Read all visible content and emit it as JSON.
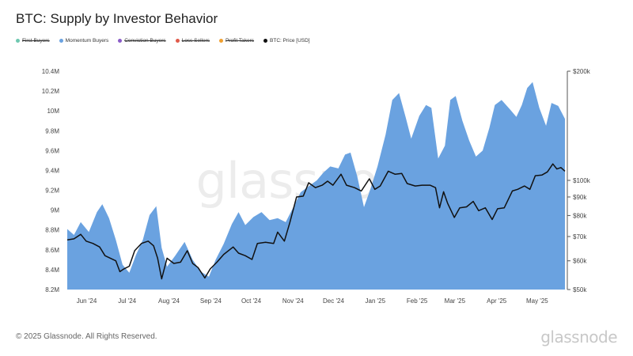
{
  "title": "BTC: Supply by Investor Behavior",
  "legend": [
    {
      "label": "First Buyers",
      "color": "#6ec8b0",
      "struck": true
    },
    {
      "label": "Momentum Buyers",
      "color": "#6aa2e0",
      "struck": false
    },
    {
      "label": "Conviction Buyers",
      "color": "#8a5cc8",
      "struck": true
    },
    {
      "label": "Loss Sellers",
      "color": "#e05a4a",
      "struck": true
    },
    {
      "label": "Profit Takers",
      "color": "#f0a030",
      "struck": true
    },
    {
      "label": "BTC: Price [USD]",
      "color": "#111111",
      "struck": false
    }
  ],
  "chart_data": {
    "type": "area",
    "x_labels": [
      "Jun '24",
      "Jul '24",
      "Aug '24",
      "Sep '24",
      "Oct '24",
      "Nov '24",
      "Dec '24",
      "Jan '25",
      "Feb '25",
      "Mar '25",
      "Apr '25",
      "May '25"
    ],
    "x_range": [
      "2024-05-27",
      "2025-05-31"
    ],
    "y_left": {
      "ticks": [
        "8.2M",
        "8.4M",
        "8.6M",
        "8.8M",
        "9M",
        "9.2M",
        "9.4M",
        "9.6M",
        "9.8M",
        "10M",
        "10.2M",
        "10.4M"
      ],
      "min": 8200000,
      "max": 10400000
    },
    "y_right": {
      "scale": "log",
      "ticks": [
        "$50k",
        "$60k",
        "$70k",
        "$80k",
        "$90k",
        "$100k",
        "$200k"
      ],
      "min": 50000,
      "max": 200000
    },
    "series": [
      {
        "name": "Momentum Buyers",
        "axis": "left",
        "color": "#6aa2e0",
        "points": [
          [
            "2024-05-27",
            8810000
          ],
          [
            "2024-06-01",
            8750000
          ],
          [
            "2024-06-06",
            8880000
          ],
          [
            "2024-06-12",
            8780000
          ],
          [
            "2024-06-18",
            8980000
          ],
          [
            "2024-06-22",
            9060000
          ],
          [
            "2024-06-27",
            8920000
          ],
          [
            "2024-07-02",
            8700000
          ],
          [
            "2024-07-07",
            8450000
          ],
          [
            "2024-07-12",
            8370000
          ],
          [
            "2024-07-17",
            8550000
          ],
          [
            "2024-07-22",
            8700000
          ],
          [
            "2024-07-27",
            8950000
          ],
          [
            "2024-08-01",
            9040000
          ],
          [
            "2024-08-05",
            8620000
          ],
          [
            "2024-08-09",
            8430000
          ],
          [
            "2024-08-15",
            8540000
          ],
          [
            "2024-08-22",
            8680000
          ],
          [
            "2024-08-28",
            8500000
          ],
          [
            "2024-09-03",
            8380000
          ],
          [
            "2024-09-09",
            8330000
          ],
          [
            "2024-09-14",
            8500000
          ],
          [
            "2024-09-20",
            8660000
          ],
          [
            "2024-09-26",
            8860000
          ],
          [
            "2024-10-01",
            8980000
          ],
          [
            "2024-10-06",
            8850000
          ],
          [
            "2024-10-12",
            8930000
          ],
          [
            "2024-10-18",
            8980000
          ],
          [
            "2024-10-24",
            8900000
          ],
          [
            "2024-10-30",
            8920000
          ],
          [
            "2024-11-05",
            8880000
          ],
          [
            "2024-11-11",
            9040000
          ],
          [
            "2024-11-16",
            9180000
          ],
          [
            "2024-11-22",
            9240000
          ],
          [
            "2024-11-28",
            9300000
          ],
          [
            "2024-12-03",
            9380000
          ],
          [
            "2024-12-08",
            9440000
          ],
          [
            "2024-12-14",
            9420000
          ],
          [
            "2024-12-19",
            9560000
          ],
          [
            "2024-12-23",
            9580000
          ],
          [
            "2024-12-28",
            9340000
          ],
          [
            "2025-01-02",
            9030000
          ],
          [
            "2025-01-07",
            9220000
          ],
          [
            "2025-01-12",
            9440000
          ],
          [
            "2025-01-18",
            9760000
          ],
          [
            "2025-01-23",
            10110000
          ],
          [
            "2025-01-28",
            10180000
          ],
          [
            "2025-02-02",
            9930000
          ],
          [
            "2025-02-06",
            9720000
          ],
          [
            "2025-02-12",
            9950000
          ],
          [
            "2025-02-17",
            10060000
          ],
          [
            "2025-02-21",
            10030000
          ],
          [
            "2025-02-26",
            9520000
          ],
          [
            "2025-03-03",
            9650000
          ],
          [
            "2025-03-07",
            10110000
          ],
          [
            "2025-03-11",
            10150000
          ],
          [
            "2025-03-16",
            9900000
          ],
          [
            "2025-03-21",
            9700000
          ],
          [
            "2025-03-26",
            9540000
          ],
          [
            "2025-03-31",
            9600000
          ],
          [
            "2025-04-05",
            9830000
          ],
          [
            "2025-04-09",
            10060000
          ],
          [
            "2025-04-14",
            10110000
          ],
          [
            "2025-04-20",
            10020000
          ],
          [
            "2025-04-25",
            9940000
          ],
          [
            "2025-04-29",
            10060000
          ],
          [
            "2025-05-03",
            10230000
          ],
          [
            "2025-05-07",
            10290000
          ],
          [
            "2025-05-12",
            10030000
          ],
          [
            "2025-05-17",
            9850000
          ],
          [
            "2025-05-21",
            10080000
          ],
          [
            "2025-05-26",
            10050000
          ],
          [
            "2025-05-31",
            9920000
          ]
        ]
      },
      {
        "name": "BTC: Price [USD]",
        "axis": "right",
        "color": "#111111",
        "points": [
          [
            "2024-05-27",
            68500
          ],
          [
            "2024-06-01",
            69000
          ],
          [
            "2024-06-06",
            71000
          ],
          [
            "2024-06-10",
            68000
          ],
          [
            "2024-06-15",
            67000
          ],
          [
            "2024-06-20",
            65500
          ],
          [
            "2024-06-24",
            62000
          ],
          [
            "2024-06-28",
            61000
          ],
          [
            "2024-07-02",
            60000
          ],
          [
            "2024-07-05",
            56000
          ],
          [
            "2024-07-08",
            57000
          ],
          [
            "2024-07-12",
            58000
          ],
          [
            "2024-07-16",
            64000
          ],
          [
            "2024-07-21",
            67000
          ],
          [
            "2024-07-26",
            68000
          ],
          [
            "2024-07-30",
            66000
          ],
          [
            "2024-08-02",
            61000
          ],
          [
            "2024-08-05",
            53500
          ],
          [
            "2024-08-09",
            61000
          ],
          [
            "2024-08-14",
            59000
          ],
          [
            "2024-08-19",
            59500
          ],
          [
            "2024-08-24",
            64000
          ],
          [
            "2024-08-28",
            59000
          ],
          [
            "2024-09-01",
            57500
          ],
          [
            "2024-09-06",
            53800
          ],
          [
            "2024-09-10",
            57000
          ],
          [
            "2024-09-15",
            59500
          ],
          [
            "2024-09-20",
            62500
          ],
          [
            "2024-09-27",
            65500
          ],
          [
            "2024-10-01",
            63000
          ],
          [
            "2024-10-06",
            62000
          ],
          [
            "2024-10-11",
            60500
          ],
          [
            "2024-10-15",
            67000
          ],
          [
            "2024-10-21",
            67500
          ],
          [
            "2024-10-27",
            67000
          ],
          [
            "2024-10-30",
            72000
          ],
          [
            "2024-11-04",
            68000
          ],
          [
            "2024-11-08",
            76500
          ],
          [
            "2024-11-13",
            90000
          ],
          [
            "2024-11-18",
            90500
          ],
          [
            "2024-11-22",
            98500
          ],
          [
            "2024-11-27",
            95500
          ],
          [
            "2024-12-02",
            97000
          ],
          [
            "2024-12-06",
            99500
          ],
          [
            "2024-12-10",
            97000
          ],
          [
            "2024-12-16",
            104000
          ],
          [
            "2024-12-20",
            97000
          ],
          [
            "2024-12-26",
            95500
          ],
          [
            "2024-12-31",
            93500
          ],
          [
            "2025-01-06",
            101000
          ],
          [
            "2025-01-10",
            94500
          ],
          [
            "2025-01-14",
            96500
          ],
          [
            "2025-01-20",
            106000
          ],
          [
            "2025-01-25",
            104000
          ],
          [
            "2025-01-30",
            104500
          ],
          [
            "2025-02-03",
            98000
          ],
          [
            "2025-02-09",
            96500
          ],
          [
            "2025-02-14",
            97000
          ],
          [
            "2025-02-20",
            97000
          ],
          [
            "2025-02-24",
            95500
          ],
          [
            "2025-02-27",
            84000
          ],
          [
            "2025-03-02",
            93000
          ],
          [
            "2025-03-05",
            86500
          ],
          [
            "2025-03-10",
            79000
          ],
          [
            "2025-03-14",
            84000
          ],
          [
            "2025-03-19",
            84500
          ],
          [
            "2025-03-24",
            87500
          ],
          [
            "2025-03-28",
            82500
          ],
          [
            "2025-04-02",
            84000
          ],
          [
            "2025-04-07",
            78000
          ],
          [
            "2025-04-11",
            83500
          ],
          [
            "2025-04-16",
            84000
          ],
          [
            "2025-04-22",
            93500
          ],
          [
            "2025-04-26",
            94500
          ],
          [
            "2025-05-01",
            96500
          ],
          [
            "2025-05-05",
            94500
          ],
          [
            "2025-05-09",
            103000
          ],
          [
            "2025-05-14",
            103500
          ],
          [
            "2025-05-18",
            105500
          ],
          [
            "2025-05-22",
            111000
          ],
          [
            "2025-05-25",
            107500
          ],
          [
            "2025-05-28",
            108500
          ],
          [
            "2025-05-31",
            106000
          ]
        ]
      }
    ],
    "grid": false,
    "legend_position": "top-left"
  },
  "watermark": "glassnode",
  "footer": {
    "copyright": "© 2025 Glassnode. All Rights Reserved.",
    "logo": "glassnode"
  }
}
